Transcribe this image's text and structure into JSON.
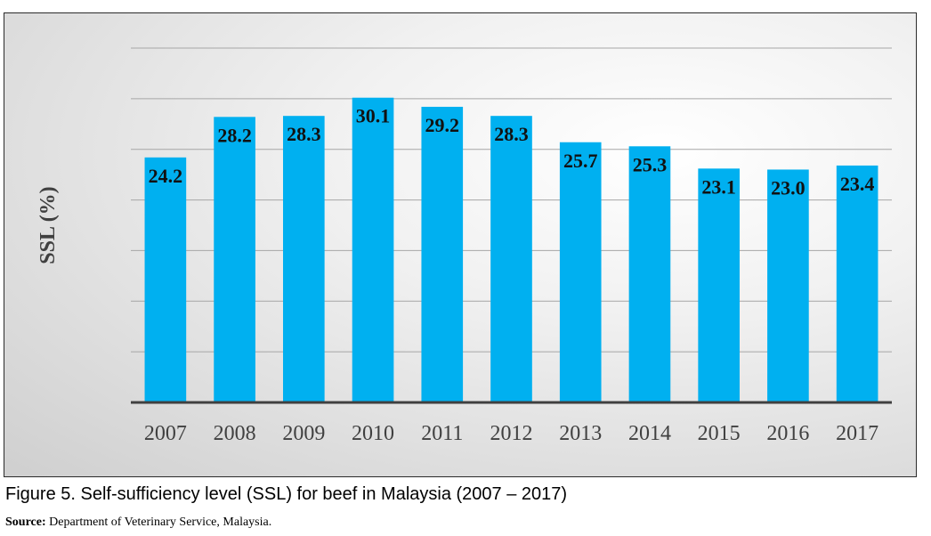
{
  "chart_data": {
    "type": "bar",
    "categories": [
      "2007",
      "2008",
      "2009",
      "2010",
      "2011",
      "2012",
      "2013",
      "2014",
      "2015",
      "2016",
      "2017"
    ],
    "values": [
      24.2,
      28.2,
      28.3,
      30.1,
      29.2,
      28.3,
      25.7,
      25.3,
      23.1,
      23.0,
      23.4
    ],
    "value_labels": [
      "24.2",
      "28.2",
      "28.3",
      "30.1",
      "29.2",
      "28.3",
      "25.7",
      "25.3",
      "23.1",
      "23.0",
      "23.4"
    ],
    "title": "",
    "xlabel": "",
    "ylabel": "SSL (%)",
    "ylim": [
      0,
      35
    ],
    "grid": true,
    "legend": "none",
    "colors": {
      "bar": "#00b0f0",
      "gridline": "#a6a6a6",
      "axis": "#404040"
    }
  },
  "caption": "Figure 5. Self-sufficiency level (SSL) for beef in Malaysia (2007 – 2017)",
  "source": {
    "label": "Source:",
    "text": " Department of Veterinary Service, Malaysia."
  }
}
